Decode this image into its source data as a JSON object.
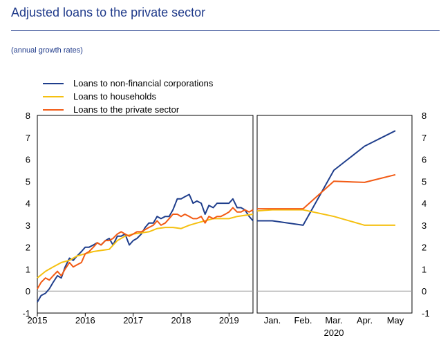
{
  "title": "Adjusted loans to the private sector",
  "subtitle": "(annual growth rates)",
  "colors": {
    "nfc": "#1f3e8c",
    "households": "#f5c010",
    "private": "#f25a14",
    "title": "#1f3a8a"
  },
  "chart_data": [
    {
      "type": "line",
      "panel": "long-run",
      "xlabel": "",
      "ylabel": "",
      "ylim": [
        -1,
        8
      ],
      "yticks": [
        -1,
        0,
        1,
        2,
        3,
        4,
        5,
        6,
        7,
        8
      ],
      "xlim": [
        2015,
        2019.5
      ],
      "xticks": [
        2015,
        2016,
        2017,
        2018,
        2019
      ],
      "xtick_labels": [
        "2015",
        "2016",
        "2017",
        "2018",
        "2019"
      ],
      "legend": "top-left",
      "grid": false,
      "series": [
        {
          "name": "Loans to non-financial corporations",
          "color_key": "nfc",
          "x": [
            2015.0,
            2015.08,
            2015.17,
            2015.25,
            2015.33,
            2015.42,
            2015.5,
            2015.58,
            2015.67,
            2015.75,
            2015.83,
            2015.92,
            2016.0,
            2016.08,
            2016.17,
            2016.25,
            2016.33,
            2016.42,
            2016.5,
            2016.58,
            2016.67,
            2016.75,
            2016.83,
            2016.92,
            2017.0,
            2017.08,
            2017.17,
            2017.25,
            2017.33,
            2017.42,
            2017.5,
            2017.58,
            2017.67,
            2017.75,
            2017.83,
            2017.92,
            2018.0,
            2018.08,
            2018.17,
            2018.25,
            2018.33,
            2018.42,
            2018.5,
            2018.58,
            2018.67,
            2018.75,
            2018.83,
            2018.92,
            2019.0,
            2019.08,
            2019.17,
            2019.25,
            2019.33,
            2019.42,
            2019.5
          ],
          "values": [
            -0.5,
            -0.2,
            -0.1,
            0.1,
            0.4,
            0.7,
            0.6,
            1.1,
            1.5,
            1.4,
            1.6,
            1.8,
            2.0,
            2.0,
            2.1,
            2.2,
            2.1,
            2.3,
            2.4,
            2.1,
            2.5,
            2.5,
            2.6,
            2.1,
            2.3,
            2.4,
            2.6,
            2.9,
            3.1,
            3.1,
            3.4,
            3.3,
            3.4,
            3.4,
            3.7,
            4.2,
            4.2,
            4.3,
            4.4,
            4.0,
            4.1,
            4.0,
            3.5,
            3.9,
            3.8,
            4.0,
            4.0,
            4.0,
            4.0,
            4.2,
            3.8,
            3.8,
            3.7,
            3.4,
            3.2
          ]
        },
        {
          "name": "Loans to households",
          "color_key": "households",
          "x": [
            2015.0,
            2015.17,
            2015.33,
            2015.5,
            2015.67,
            2015.83,
            2016.0,
            2016.17,
            2016.33,
            2016.5,
            2016.67,
            2016.83,
            2017.0,
            2017.17,
            2017.33,
            2017.5,
            2017.67,
            2017.83,
            2018.0,
            2018.17,
            2018.33,
            2018.5,
            2018.67,
            2018.83,
            2019.0,
            2019.17,
            2019.33,
            2019.5
          ],
          "values": [
            0.6,
            0.9,
            1.1,
            1.3,
            1.4,
            1.6,
            1.7,
            1.8,
            1.85,
            1.9,
            2.3,
            2.5,
            2.6,
            2.65,
            2.7,
            2.85,
            2.9,
            2.9,
            2.85,
            3.0,
            3.1,
            3.2,
            3.3,
            3.3,
            3.3,
            3.4,
            3.45,
            3.5
          ]
        },
        {
          "name": "Loans to the private sector",
          "color_key": "private",
          "x": [
            2015.0,
            2015.08,
            2015.17,
            2015.25,
            2015.33,
            2015.42,
            2015.5,
            2015.58,
            2015.67,
            2015.75,
            2015.83,
            2015.92,
            2016.0,
            2016.08,
            2016.17,
            2016.25,
            2016.33,
            2016.42,
            2016.5,
            2016.58,
            2016.67,
            2016.75,
            2016.83,
            2016.92,
            2017.0,
            2017.08,
            2017.17,
            2017.25,
            2017.33,
            2017.42,
            2017.5,
            2017.58,
            2017.67,
            2017.75,
            2017.83,
            2017.92,
            2018.0,
            2018.08,
            2018.17,
            2018.25,
            2018.33,
            2018.42,
            2018.5,
            2018.58,
            2018.67,
            2018.75,
            2018.83,
            2018.92,
            2019.0,
            2019.08,
            2019.17,
            2019.25,
            2019.33,
            2019.42,
            2019.5
          ],
          "values": [
            0.1,
            0.4,
            0.6,
            0.5,
            0.7,
            0.9,
            0.7,
            1.0,
            1.3,
            1.1,
            1.2,
            1.3,
            1.7,
            1.8,
            2.0,
            2.2,
            2.1,
            2.3,
            2.3,
            2.4,
            2.6,
            2.7,
            2.6,
            2.5,
            2.6,
            2.7,
            2.7,
            2.8,
            2.9,
            3.0,
            3.2,
            3.0,
            3.1,
            3.3,
            3.5,
            3.5,
            3.4,
            3.5,
            3.4,
            3.3,
            3.3,
            3.4,
            3.1,
            3.4,
            3.3,
            3.4,
            3.4,
            3.5,
            3.6,
            3.8,
            3.6,
            3.6,
            3.7,
            3.6,
            3.7
          ]
        }
      ]
    },
    {
      "type": "line",
      "panel": "2020-monthly",
      "xlabel": "2020",
      "ylabel": "",
      "ylim": [
        -1,
        8
      ],
      "yticks": [
        -1,
        0,
        1,
        2,
        3,
        4,
        5,
        6,
        7,
        8
      ],
      "categories": [
        "Jan.",
        "Feb.",
        "Mar.",
        "Apr.",
        "May"
      ],
      "grid": false,
      "series": [
        {
          "name": "Loans to non-financial corporations",
          "color_key": "nfc",
          "x": [
            -0.6,
            0.0,
            1.0,
            2.0,
            3.0,
            4.0
          ],
          "values": [
            3.2,
            3.2,
            3.0,
            5.5,
            6.6,
            7.3
          ]
        },
        {
          "name": "Loans to households",
          "color_key": "households",
          "x": [
            -0.6,
            0.0,
            1.0,
            2.0,
            3.0,
            4.0
          ],
          "values": [
            3.65,
            3.7,
            3.7,
            3.4,
            3.0,
            3.0
          ]
        },
        {
          "name": "Loans to the private sector",
          "color_key": "private",
          "x": [
            -0.6,
            0.0,
            1.0,
            2.0,
            3.0,
            4.0
          ],
          "values": [
            3.75,
            3.75,
            3.75,
            5.0,
            4.95,
            5.3
          ]
        }
      ]
    }
  ]
}
